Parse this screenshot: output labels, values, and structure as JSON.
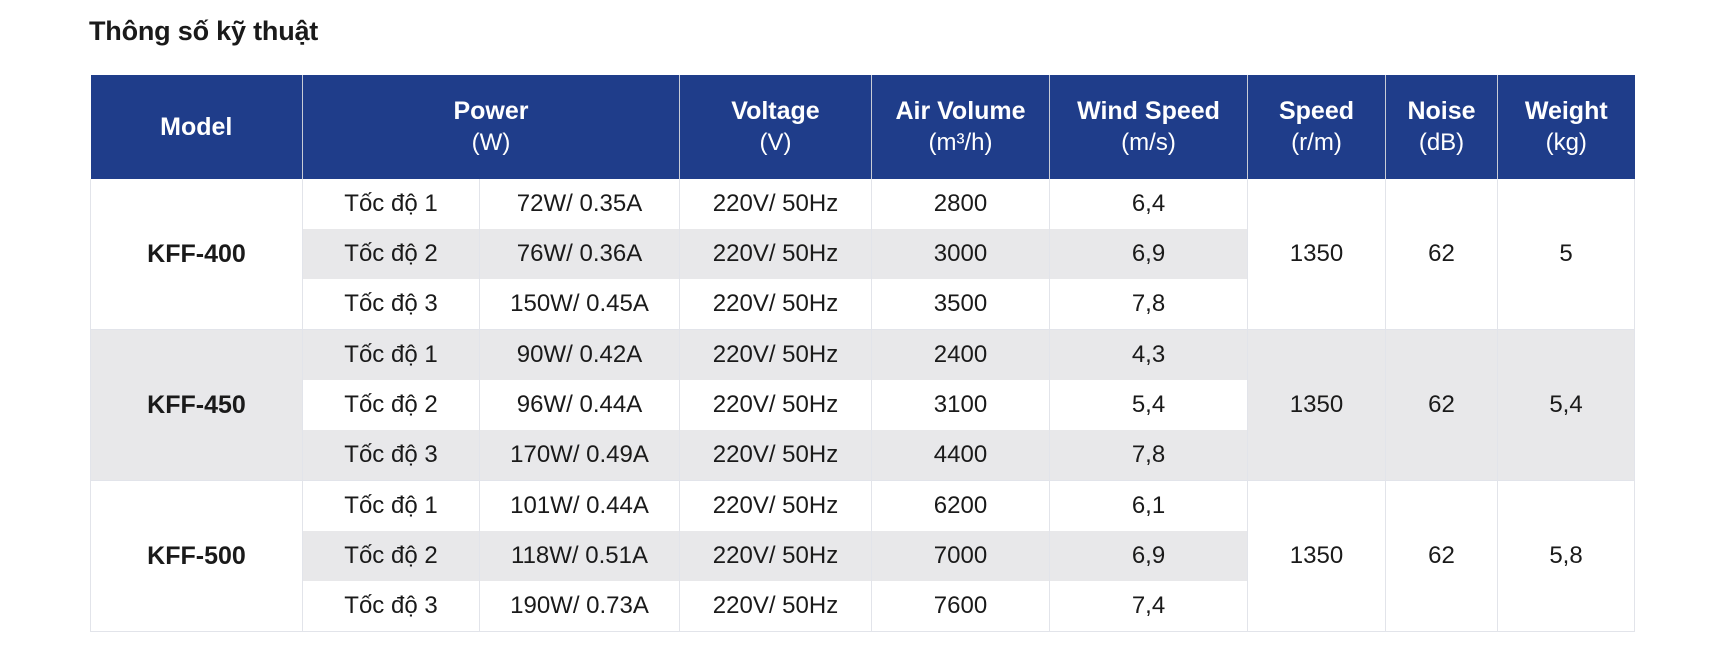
{
  "title": "Thông số kỹ thuật",
  "header": {
    "model": "Model",
    "power": "Power",
    "power_unit": "(W)",
    "voltage": "Voltage",
    "voltage_unit": "(V)",
    "air_volume": "Air Volume",
    "air_volume_unit": "(m³/h)",
    "wind_speed": "Wind Speed",
    "wind_speed_unit": "(m/s)",
    "speed": "Speed",
    "speed_unit": "(r/m)",
    "noise": "Noise",
    "noise_unit": "(dB)",
    "weight": "Weight",
    "weight_unit": "(kg)"
  },
  "models": [
    {
      "name": "KFF-400",
      "speed": "1350",
      "noise": "62",
      "weight": "5",
      "rows": [
        {
          "level": "Tốc độ 1",
          "power": "72W/ 0.35A",
          "voltage": "220V/ 50Hz",
          "air_volume": "2800",
          "wind_speed": "6,4"
        },
        {
          "level": "Tốc độ 2",
          "power": "76W/ 0.36A",
          "voltage": "220V/ 50Hz",
          "air_volume": "3000",
          "wind_speed": "6,9"
        },
        {
          "level": "Tốc độ 3",
          "power": "150W/ 0.45A",
          "voltage": "220V/ 50Hz",
          "air_volume": "3500",
          "wind_speed": "7,8"
        }
      ]
    },
    {
      "name": "KFF-450",
      "speed": "1350",
      "noise": "62",
      "weight": "5,4",
      "rows": [
        {
          "level": "Tốc độ 1",
          "power": "90W/ 0.42A",
          "voltage": "220V/ 50Hz",
          "air_volume": "2400",
          "wind_speed": "4,3"
        },
        {
          "level": "Tốc độ 2",
          "power": "96W/ 0.44A",
          "voltage": "220V/ 50Hz",
          "air_volume": "3100",
          "wind_speed": "5,4"
        },
        {
          "level": "Tốc độ 3",
          "power": "170W/ 0.49A",
          "voltage": "220V/ 50Hz",
          "air_volume": "4400",
          "wind_speed": "7,8"
        }
      ]
    },
    {
      "name": "KFF-500",
      "speed": "1350",
      "noise": "62",
      "weight": "5,8",
      "rows": [
        {
          "level": "Tốc độ 1",
          "power": "101W/ 0.44A",
          "voltage": "220V/ 50Hz",
          "air_volume": "6200",
          "wind_speed": "6,1"
        },
        {
          "level": "Tốc độ 2",
          "power": "118W/ 0.51A",
          "voltage": "220V/ 50Hz",
          "air_volume": "7000",
          "wind_speed": "6,9"
        },
        {
          "level": "Tốc độ 3",
          "power": "190W/ 0.73A",
          "voltage": "220V/ 50Hz",
          "air_volume": "7600",
          "wind_speed": "7,4"
        }
      ]
    }
  ]
}
